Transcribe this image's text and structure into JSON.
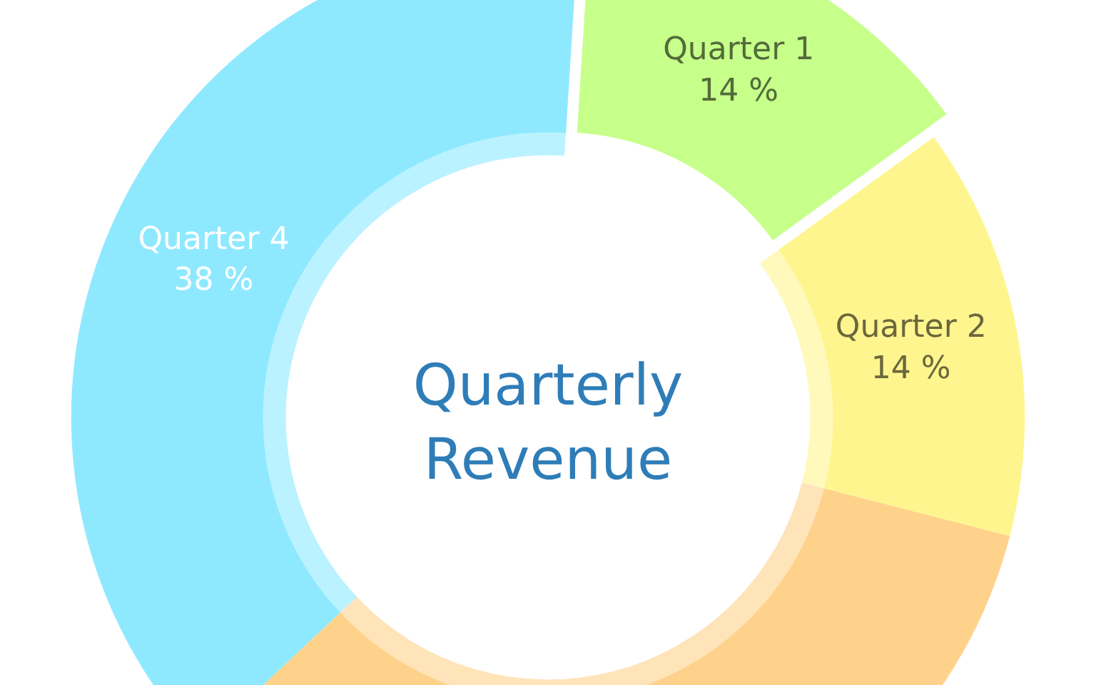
{
  "chart_data": {
    "type": "donut",
    "title": "Quarterly\nRevenue",
    "categories": [
      "Quarter 1",
      "Quarter 2",
      null,
      "Quarter 4"
    ],
    "values": [
      14,
      14,
      34,
      38
    ],
    "colors": [
      "#c6ff8a",
      "#fff58f",
      "#ffd28c",
      "#8ee9ff"
    ],
    "value_labels": [
      "14 %",
      "14 %",
      null,
      "38 %"
    ]
  }
}
